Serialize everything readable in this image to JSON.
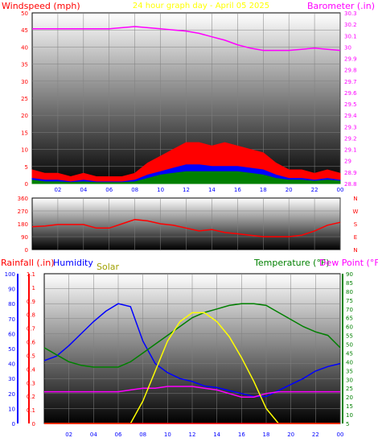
{
  "colors": {
    "wind": "#ff0000",
    "wind_avg": "#008000",
    "wind_mid": "#0000ff",
    "barometer": "#ff00ff",
    "direction": "#ff0000",
    "humidity": "#0000ff",
    "solar": "#ffff00",
    "temperature": "#008000",
    "dew_point": "#ff00ff",
    "rainfall": "#ff0000",
    "title": "#ffff00",
    "plot_top": "#ffffff",
    "plot_bottom": "#000000"
  },
  "chart_data": [
    {
      "type": "line",
      "title": "24 hour graph day - April 05 2025",
      "ylabel": "Windspeed (mph)",
      "y2label": "Barometer (.in)",
      "ylim": [
        0,
        50
      ],
      "y2lim": [
        28.8,
        30.3
      ],
      "yticks": [
        "0",
        "5",
        "10",
        "15",
        "20",
        "25",
        "30",
        "35",
        "40",
        "45",
        "50"
      ],
      "y2ticks": [
        "28.8",
        "28.9",
        "29",
        "29.1",
        "29.2",
        "29.3",
        "29.4",
        "29.5",
        "29.6",
        "29.7",
        "29.8",
        "29.9",
        "30",
        "30.1",
        "30.2",
        "30.3"
      ],
      "x": [
        0,
        1,
        2,
        3,
        4,
        5,
        6,
        7,
        8,
        9,
        10,
        11,
        12,
        13,
        14,
        15,
        16,
        17,
        18,
        19,
        20,
        21,
        22,
        23,
        24
      ],
      "xticks": [
        "02",
        "04",
        "06",
        "08",
        "10",
        "12",
        "14",
        "16",
        "18",
        "20",
        "22",
        "00"
      ],
      "series": [
        {
          "axis": "y2",
          "color_key": "barometer",
          "values": [
            30.16,
            30.16,
            30.16,
            30.16,
            30.16,
            30.16,
            30.16,
            30.17,
            30.18,
            30.17,
            30.16,
            30.15,
            30.14,
            30.12,
            30.09,
            30.06,
            30.02,
            29.99,
            29.97,
            29.97,
            29.97,
            29.98,
            29.99,
            29.98,
            29.97
          ]
        },
        {
          "axis": "y",
          "color_key": "wind",
          "values": [
            4,
            3,
            3,
            2,
            3,
            2,
            2,
            2,
            3,
            6,
            8,
            10,
            12,
            12,
            11,
            12,
            11,
            10,
            9,
            6,
            4,
            4,
            3,
            4,
            3
          ]
        },
        {
          "axis": "y",
          "color_key": "wind_mid",
          "values": [
            1.5,
            1,
            1,
            0.5,
            1,
            0.5,
            0.5,
            0.5,
            1,
            2.5,
            3.5,
            4.5,
            5.5,
            5.5,
            5,
            5,
            5,
            4.5,
            4,
            2.5,
            1.5,
            1.5,
            1,
            1.5,
            1
          ]
        },
        {
          "axis": "y",
          "color_key": "wind_avg",
          "values": [
            1,
            0.5,
            0.5,
            0.3,
            0.5,
            0.3,
            0.3,
            0.3,
            0.5,
            1.5,
            2.5,
            3,
            3.5,
            3.5,
            3.5,
            3.5,
            3.5,
            3,
            2.5,
            1.5,
            1,
            1,
            0.7,
            1,
            0.7
          ]
        }
      ]
    },
    {
      "type": "line",
      "labels_right": [
        "N",
        "W",
        "S",
        "E",
        "N"
      ],
      "ylim": [
        0,
        360
      ],
      "yticks": [
        "0",
        "90",
        "180",
        "270",
        "360"
      ],
      "x": [
        0,
        1,
        2,
        3,
        4,
        5,
        6,
        7,
        8,
        9,
        10,
        11,
        12,
        13,
        14,
        15,
        16,
        17,
        18,
        19,
        20,
        21,
        22,
        23,
        24
      ],
      "xticks": [
        "02",
        "04",
        "06",
        "08",
        "10",
        "12",
        "14",
        "16",
        "18",
        "20",
        "22",
        "00"
      ],
      "series": [
        {
          "color_key": "direction",
          "values": [
            160,
            165,
            175,
            175,
            175,
            150,
            150,
            180,
            210,
            200,
            180,
            170,
            150,
            130,
            140,
            120,
            110,
            100,
            90,
            90,
            90,
            100,
            130,
            170,
            190
          ]
        }
      ]
    },
    {
      "type": "line",
      "ylabel": "Rainfall (.in)",
      "ylabel2": "Humidity",
      "ylabel3": "Solar",
      "y2label": "Temperature (°F)",
      "y2label2": "Dew Point (°F)",
      "rain_lim": [
        0,
        1.1
      ],
      "rain_ticks": [
        "0",
        "0.1",
        "0.2",
        "0.3",
        "0.4",
        "0.5",
        "0.6",
        "0.7",
        "0.8",
        "0.9",
        "1",
        "1.1"
      ],
      "hum_lim": [
        0,
        100
      ],
      "hum_ticks": [
        "0",
        "10",
        "20",
        "30",
        "40",
        "50",
        "60",
        "70",
        "80",
        "90",
        "100"
      ],
      "temp_lim": [
        5,
        90
      ],
      "temp_ticks": [
        "5",
        "10",
        "15",
        "20",
        "25",
        "30",
        "35",
        "40",
        "45",
        "50",
        "55",
        "60",
        "65",
        "70",
        "75",
        "80",
        "85",
        "90"
      ],
      "x": [
        0,
        1,
        2,
        3,
        4,
        5,
        6,
        7,
        8,
        9,
        10,
        11,
        12,
        13,
        14,
        15,
        16,
        17,
        18,
        19,
        20,
        21,
        22,
        23,
        24
      ],
      "xticks": [
        "02",
        "04",
        "06",
        "08",
        "10",
        "12",
        "14",
        "16",
        "18",
        "20",
        "22",
        "00"
      ],
      "series": [
        {
          "axis": "humidity",
          "color_key": "humidity",
          "values": [
            42,
            45,
            52,
            60,
            68,
            75,
            80,
            78,
            55,
            40,
            34,
            30,
            28,
            25,
            24,
            22,
            20,
            18,
            18,
            22,
            26,
            30,
            35,
            38,
            40
          ]
        },
        {
          "axis": "temp",
          "color_key": "temperature",
          "values": [
            48,
            44,
            40,
            38,
            37,
            37,
            37,
            40,
            45,
            50,
            55,
            60,
            65,
            68,
            70,
            72,
            73,
            73,
            72,
            68,
            64,
            60,
            57,
            55,
            48
          ]
        },
        {
          "axis": "temp",
          "color_key": "dew_point",
          "values": [
            23,
            23,
            23,
            23,
            23,
            23,
            23,
            24,
            25,
            25,
            26,
            26,
            26,
            25,
            24,
            22,
            20,
            20,
            22,
            23,
            23,
            23,
            23,
            23,
            23
          ]
        },
        {
          "axis": "solar",
          "color_key": "solar",
          "values": [
            0,
            0,
            0,
            0,
            0,
            0,
            0,
            0,
            15,
            35,
            55,
            68,
            74,
            74,
            68,
            58,
            44,
            28,
            10,
            0,
            0,
            0,
            0,
            0,
            0
          ]
        },
        {
          "axis": "rain",
          "color_key": "rainfall",
          "values": [
            0,
            0,
            0,
            0,
            0,
            0,
            0,
            0,
            0,
            0,
            0,
            0,
            0,
            0,
            0,
            0,
            0,
            0,
            0,
            0,
            0,
            0,
            0,
            0,
            0
          ]
        }
      ]
    }
  ]
}
